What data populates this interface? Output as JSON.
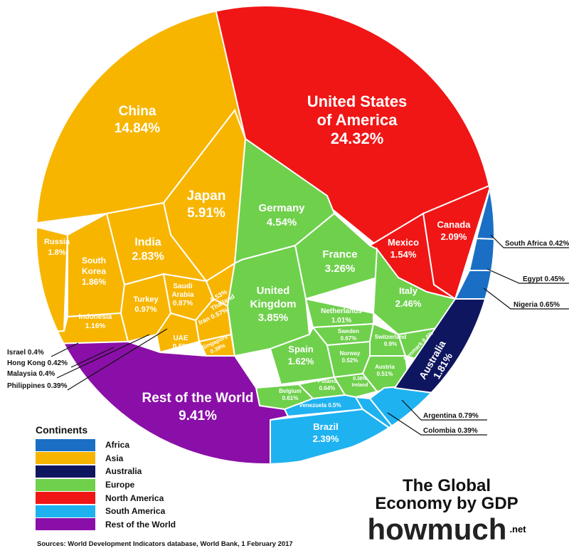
{
  "chart_data": {
    "type": "voronoi_treemap",
    "title": "The Global Economy by GDP",
    "legend_title": "Continents",
    "legend": [
      {
        "name": "Africa",
        "color": "#1a6fc4"
      },
      {
        "name": "Asia",
        "color": "#f7b500"
      },
      {
        "name": "Australia",
        "color": "#0f1660"
      },
      {
        "name": "Europe",
        "color": "#6fd04c"
      },
      {
        "name": "North America",
        "color": "#f01616"
      },
      {
        "name": "South America",
        "color": "#1fb2f0"
      },
      {
        "name": "Rest of the World",
        "color": "#8a0fa8"
      }
    ],
    "cells": [
      {
        "name": "United States of America",
        "value": 24.32,
        "label": "24.32%",
        "continent": "North America"
      },
      {
        "name": "Canada",
        "value": 2.09,
        "label": "2.09%",
        "continent": "North America"
      },
      {
        "name": "Mexico",
        "value": 1.54,
        "label": "1.54%",
        "continent": "North America"
      },
      {
        "name": "China",
        "value": 14.84,
        "label": "14.84%",
        "continent": "Asia"
      },
      {
        "name": "Japan",
        "value": 5.91,
        "label": "5.91%",
        "continent": "Asia"
      },
      {
        "name": "India",
        "value": 2.83,
        "label": "2.83%",
        "continent": "Asia"
      },
      {
        "name": "South Korea",
        "value": 1.86,
        "label": "1.86%",
        "continent": "Asia"
      },
      {
        "name": "Russia",
        "value": 1.8,
        "label": "1.8%",
        "continent": "Asia"
      },
      {
        "name": "Indonesia",
        "value": 1.16,
        "label": "1.16%",
        "continent": "Asia"
      },
      {
        "name": "Turkey",
        "value": 0.97,
        "label": "0.97%",
        "continent": "Asia"
      },
      {
        "name": "Saudi Arabia",
        "value": 0.87,
        "label": "0.87%",
        "continent": "Asia"
      },
      {
        "name": "Thailand",
        "value": 0.53,
        "label": "0.53%",
        "continent": "Asia"
      },
      {
        "name": "Iran",
        "value": 0.57,
        "label": "0.57%",
        "continent": "Asia"
      },
      {
        "name": "UAE",
        "value": 0.5,
        "label": "0.5%",
        "continent": "Asia"
      },
      {
        "name": "Singapore",
        "value": 0.39,
        "label": "0.39%",
        "continent": "Asia"
      },
      {
        "name": "Germany",
        "value": 4.54,
        "label": "4.54%",
        "continent": "Europe"
      },
      {
        "name": "United Kingdom",
        "value": 3.85,
        "label": "3.85%",
        "continent": "Europe"
      },
      {
        "name": "France",
        "value": 3.26,
        "label": "3.26%",
        "continent": "Europe"
      },
      {
        "name": "Italy",
        "value": 2.46,
        "label": "2.46%",
        "continent": "Europe"
      },
      {
        "name": "Spain",
        "value": 1.62,
        "label": "1.62%",
        "continent": "Europe"
      },
      {
        "name": "Netherlands",
        "value": 1.01,
        "label": "1.01%",
        "continent": "Europe"
      },
      {
        "name": "Switzerland",
        "value": 0.9,
        "label": "0.9%",
        "continent": "Europe"
      },
      {
        "name": "Sweden",
        "value": 0.67,
        "label": "0.67%",
        "continent": "Europe"
      },
      {
        "name": "Poland",
        "value": 0.64,
        "label": "0.64%",
        "continent": "Europe"
      },
      {
        "name": "Belgium",
        "value": 0.61,
        "label": "0.61%",
        "continent": "Europe"
      },
      {
        "name": "Norway",
        "value": 0.52,
        "label": "0.52%",
        "continent": "Europe"
      },
      {
        "name": "Austria",
        "value": 0.51,
        "label": "0.51%",
        "continent": "Europe"
      },
      {
        "name": "Denmark",
        "value": 0.4,
        "label": "0.4%",
        "continent": "Europe"
      },
      {
        "name": "Ireland",
        "value": 0.38,
        "label": "0.38%",
        "continent": "Europe"
      },
      {
        "name": "Brazil",
        "value": 2.39,
        "label": "2.39%",
        "continent": "South America"
      },
      {
        "name": "Venezuela",
        "value": 0.5,
        "label": "0.5%",
        "continent": "South America"
      },
      {
        "name": "Argentina",
        "value": 0.79,
        "label": "0.79%",
        "continent": "South America"
      },
      {
        "name": "Colombia",
        "value": 0.39,
        "label": "0.39%",
        "continent": "South America"
      },
      {
        "name": "Australia",
        "value": 1.81,
        "label": "1.81%",
        "continent": "Australia"
      },
      {
        "name": "South Africa",
        "value": 0.42,
        "label": "0.42%",
        "continent": "Africa"
      },
      {
        "name": "Egypt",
        "value": 0.45,
        "label": "0.45%",
        "continent": "Africa"
      },
      {
        "name": "Nigeria",
        "value": 0.65,
        "label": "0.65%",
        "continent": "Africa"
      },
      {
        "name": "Israel",
        "value": 0.4,
        "label": "0.4%",
        "continent": "Asia"
      },
      {
        "name": "Hong Kong",
        "value": 0.42,
        "label": "0.42%",
        "continent": "Asia"
      },
      {
        "name": "Malaysia",
        "value": 0.4,
        "label": "0.4%",
        "continent": "Asia"
      },
      {
        "name": "Philippines",
        "value": 0.39,
        "label": "0.39%",
        "continent": "Asia"
      },
      {
        "name": "Rest of the World",
        "value": 9.41,
        "label": "9.41%",
        "continent": "Rest of the World"
      }
    ],
    "cell_labels": {
      "usa": [
        "United States",
        "of America",
        "24.32%"
      ],
      "china": [
        "China",
        "14.84%"
      ],
      "japan": [
        "Japan",
        "5.91%"
      ],
      "germany": [
        "Germany",
        "4.54%"
      ],
      "india": [
        "India",
        "2.83%"
      ],
      "canada": [
        "Canada",
        "2.09%"
      ],
      "mexico": [
        "Mexico",
        "1.54%"
      ],
      "russia": [
        "Russia",
        "1.8%"
      ],
      "korea": [
        "South",
        "Korea",
        "1.86%"
      ],
      "france": [
        "France",
        "3.26%"
      ],
      "uk": [
        "United",
        "Kingdom",
        "3.85%"
      ],
      "italy": [
        "Italy",
        "2.46%"
      ],
      "netherlands": [
        "Netherlands",
        "1.01%"
      ],
      "turkey": [
        "Turkey",
        "0.97%"
      ],
      "saudi": [
        "Saudi",
        "Arabia",
        "0.87%"
      ],
      "indonesia": [
        "Indonesia",
        "1.16%"
      ],
      "thailand": [
        "0.53%",
        "Thailand"
      ],
      "iran": [
        "Iran 0.57%"
      ],
      "uae": [
        "UAE",
        "0.5%"
      ],
      "singapore": [
        "Singapore",
        "0.39%"
      ],
      "sweden": [
        "Sweden",
        "0.67%"
      ],
      "switzerland": [
        "Switzerland",
        "0.9%"
      ],
      "denmark": [
        "Denmark 0.4%"
      ],
      "spain": [
        "Spain",
        "1.62%"
      ],
      "norway": [
        "Norway",
        "0.52%"
      ],
      "austria": [
        "Austria",
        "0.51%"
      ],
      "poland": [
        "Poland",
        "0.64%"
      ],
      "ireland": [
        "0.38%",
        "Ireland"
      ],
      "belgium": [
        "Belgium",
        "0.61%"
      ],
      "venezuela": [
        "Venezuela 0.5%"
      ],
      "brazil": [
        "Brazil",
        "2.39%"
      ],
      "australia": [
        "Australia",
        "1.81%"
      ],
      "rest": [
        "Rest of the World",
        "9.41%"
      ]
    },
    "callouts": {
      "south_africa": "South Africa 0.42%",
      "egypt": "Egypt 0.45%",
      "nigeria": "Nigeria 0.65%",
      "argentina": "Argentina 0.79%",
      "colombia": "Colombia 0.39%",
      "israel": "Israel 0.4%",
      "hong_kong": "Hong Kong 0.42%",
      "malaysia": "Malaysia 0.4%",
      "philippines": "Philippines 0.39%"
    }
  },
  "brand": {
    "title_line1": "The Global",
    "title_line2": "Economy by GDP",
    "logo_how": "how",
    "logo_much": "much",
    "logo_net": ".net"
  },
  "source": "Sources: World Development Indicators database, World Bank, 1 February 2017"
}
